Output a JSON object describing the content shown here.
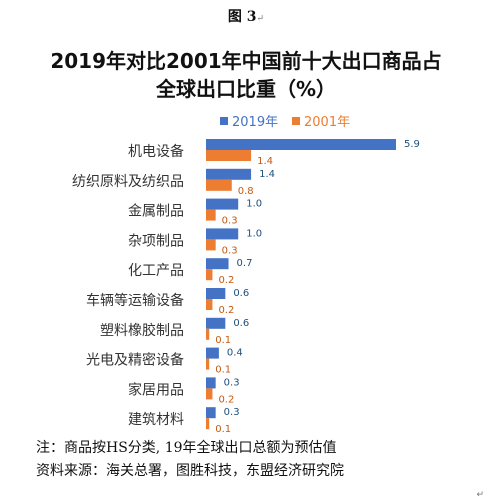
{
  "figure": {
    "caption": "图 3",
    "paragraph_mark": "↵"
  },
  "notes": {
    "note1": "注：商品按HS分类, 19年全球出口总额为预估值",
    "note2": "资料来源：海关总署，图胜科技，东盟经济研究院",
    "corner_mark": "↵"
  },
  "colors": {
    "series_2019": "#4472C4",
    "series_2001": "#ED7D31",
    "text": "#333333"
  },
  "chart_data": {
    "type": "bar",
    "orientation": "horizontal",
    "title": "2019年对比2001年中国前十大出口商品占全球出口比重（%）",
    "title_lines": [
      "2019年对比2001年中国前十大出口商品占",
      "全球出口比重（%）"
    ],
    "categories": [
      "机电设备",
      "纺织原料及纺织品",
      "金属制品",
      "杂项制品",
      "化工产品",
      "车辆等运输设备",
      "塑料橡胶制品",
      "光电及精密设备",
      "家居用品",
      "建筑材料"
    ],
    "series": [
      {
        "name": "2019年",
        "values": [
          5.9,
          1.4,
          1.0,
          1.0,
          0.7,
          0.6,
          0.6,
          0.4,
          0.3,
          0.3
        ],
        "labels": [
          "5.9",
          "1.4",
          "1.0",
          "1.0",
          "0.7",
          "0.6",
          "0.6",
          "0.4",
          "0.3",
          "0.3"
        ]
      },
      {
        "name": "2001年",
        "values": [
          1.4,
          0.8,
          0.3,
          0.3,
          0.2,
          0.2,
          0.1,
          0.1,
          0.2,
          0.1
        ],
        "labels": [
          "1.4",
          "0.8",
          "0.3",
          "0.3",
          "0.2",
          "0.2",
          "0.1",
          "0.1",
          "0.2",
          "0.1"
        ]
      }
    ],
    "xlim": [
      0,
      6.2
    ],
    "legend": "top",
    "grid": false,
    "axis_labels_visible": false
  }
}
